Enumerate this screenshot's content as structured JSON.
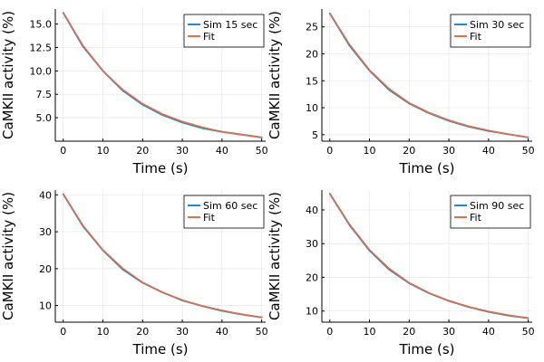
{
  "chart_data": [
    {
      "type": "line",
      "xlabel": "Time (s)",
      "ylabel": "CaMKII activity (%)",
      "xlim": [
        -2,
        51
      ],
      "ylim": [
        2.5,
        16.6
      ],
      "xticks": [
        0,
        10,
        20,
        30,
        40,
        50
      ],
      "yticks": [
        5.0,
        7.5,
        10.0,
        12.5,
        15.0
      ],
      "ytick_labels": [
        "5.0",
        "7.5",
        "10.0",
        "12.5",
        "15.0"
      ],
      "grid": true,
      "legend_position": "top-right",
      "series": [
        {
          "name": "Sim 15 sec",
          "color": "#1f8bd6",
          "x": [
            0,
            5,
            10,
            15,
            20,
            25,
            30,
            35,
            40,
            45,
            50
          ],
          "values": [
            16.2,
            12.6,
            10.0,
            7.9,
            6.4,
            5.3,
            4.5,
            3.9,
            3.5,
            3.2,
            2.9
          ]
        },
        {
          "name": "Fit",
          "color": "#e26f46",
          "x": [
            0,
            5,
            10,
            15,
            20,
            25,
            30,
            35,
            40,
            45,
            50
          ],
          "values": [
            16.2,
            12.7,
            10.0,
            8.0,
            6.5,
            5.4,
            4.6,
            4.0,
            3.5,
            3.2,
            2.9
          ]
        }
      ]
    },
    {
      "type": "line",
      "xlabel": "Time (s)",
      "ylabel": "CaMKII activity (%)",
      "xlim": [
        -2,
        51
      ],
      "ylim": [
        3.8,
        28.3
      ],
      "xticks": [
        0,
        10,
        20,
        30,
        40,
        50
      ],
      "yticks": [
        5,
        10,
        15,
        20,
        25
      ],
      "ytick_labels": [
        "5",
        "10",
        "15",
        "20",
        "25"
      ],
      "grid": true,
      "legend_position": "top-right",
      "series": [
        {
          "name": "Sim 30 sec",
          "color": "#1f8bd6",
          "x": [
            0,
            5,
            10,
            15,
            20,
            25,
            30,
            35,
            40,
            45,
            50
          ],
          "values": [
            27.5,
            21.5,
            16.9,
            13.3,
            10.8,
            9.0,
            7.6,
            6.5,
            5.7,
            5.1,
            4.5
          ]
        },
        {
          "name": "Fit",
          "color": "#e26f46",
          "x": [
            0,
            5,
            10,
            15,
            20,
            25,
            30,
            35,
            40,
            45,
            50
          ],
          "values": [
            27.5,
            21.7,
            17.0,
            13.5,
            10.9,
            9.1,
            7.7,
            6.6,
            5.8,
            5.1,
            4.5
          ]
        }
      ]
    },
    {
      "type": "line",
      "xlabel": "Time (s)",
      "ylabel": "CaMKII activity (%)",
      "xlim": [
        -2,
        51
      ],
      "ylim": [
        5.5,
        41.3
      ],
      "xticks": [
        0,
        10,
        20,
        30,
        40,
        50
      ],
      "yticks": [
        10,
        20,
        30,
        40
      ],
      "ytick_labels": [
        "10",
        "20",
        "30",
        "40"
      ],
      "grid": true,
      "legend_position": "top-right",
      "series": [
        {
          "name": "Sim 60 sec",
          "color": "#1f8bd6",
          "x": [
            0,
            5,
            10,
            15,
            20,
            25,
            30,
            35,
            40,
            45,
            50
          ],
          "values": [
            40.2,
            31.5,
            25.0,
            19.8,
            16.2,
            13.6,
            11.4,
            9.9,
            8.6,
            7.6,
            6.8
          ]
        },
        {
          "name": "Fit",
          "color": "#e26f46",
          "x": [
            0,
            5,
            10,
            15,
            20,
            25,
            30,
            35,
            40,
            45,
            50
          ],
          "values": [
            40.2,
            31.7,
            25.1,
            20.1,
            16.3,
            13.6,
            11.5,
            9.9,
            8.7,
            7.6,
            6.8
          ]
        }
      ]
    },
    {
      "type": "line",
      "xlabel": "Time (s)",
      "ylabel": "CaMKII activity (%)",
      "xlim": [
        -2,
        51
      ],
      "ylim": [
        6.7,
        45.9
      ],
      "xticks": [
        0,
        10,
        20,
        30,
        40,
        50
      ],
      "yticks": [
        10,
        20,
        30,
        40
      ],
      "ytick_labels": [
        "10",
        "20",
        "30",
        "40"
      ],
      "grid": true,
      "legend_position": "top-right",
      "series": [
        {
          "name": "Sim 90 sec",
          "color": "#1f8bd6",
          "x": [
            0,
            5,
            10,
            15,
            20,
            25,
            30,
            35,
            40,
            45,
            50
          ],
          "values": [
            44.8,
            35.5,
            28.0,
            22.3,
            18.3,
            15.3,
            13.0,
            11.2,
            9.8,
            8.7,
            7.9
          ]
        },
        {
          "name": "Fit",
          "color": "#e26f46",
          "x": [
            0,
            5,
            10,
            15,
            20,
            25,
            30,
            35,
            40,
            45,
            50
          ],
          "values": [
            44.8,
            35.7,
            28.2,
            22.6,
            18.4,
            15.4,
            13.1,
            11.3,
            9.9,
            8.8,
            7.9
          ]
        }
      ]
    }
  ]
}
